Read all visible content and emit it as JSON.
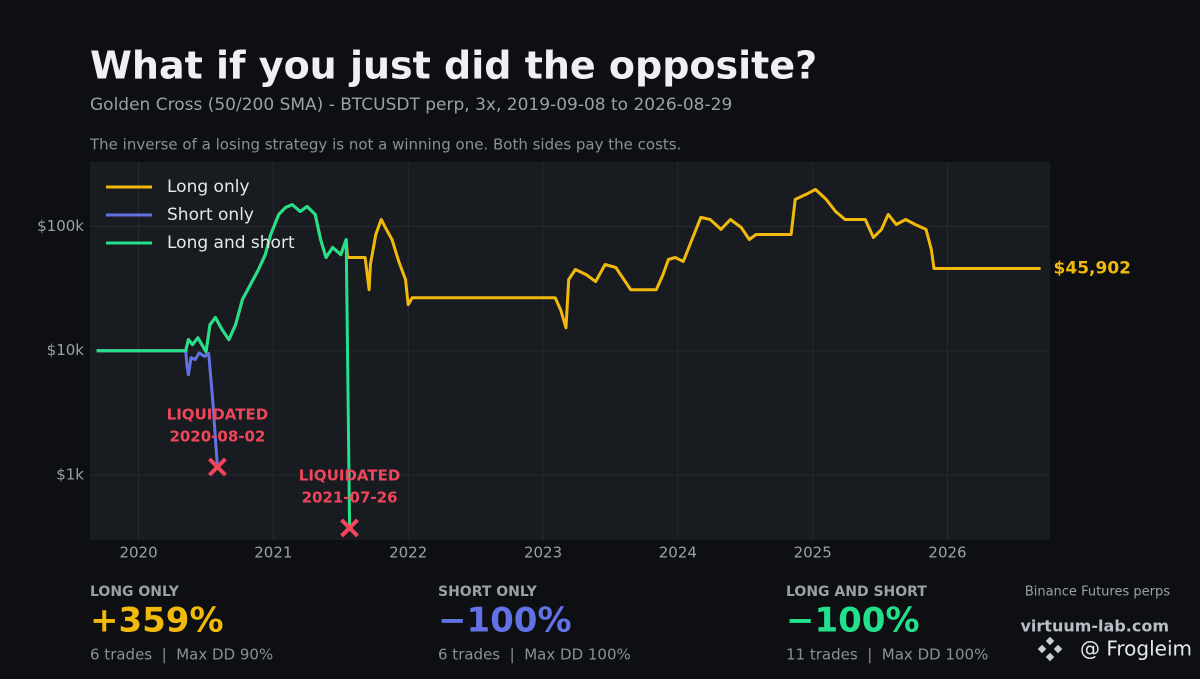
{
  "chart_data": {
    "type": "line",
    "title": "What if you just did the opposite?",
    "subtitle": "Golden Cross (50/200 SMA) - BTCUSDT perp, 3x, 2019-09-08 to 2026-08-29",
    "caption": "The inverse of a losing strategy is not a winning one. Both sides pay the costs.",
    "log_y": true,
    "grid": true,
    "legend": "upper left",
    "xlim": [
      2019.64,
      2026.76
    ],
    "xticks": [
      2020,
      2021,
      2022,
      2023,
      2024,
      2025,
      2026
    ],
    "ylim": [
      300,
      330000
    ],
    "yticks": [
      {
        "value": 1000,
        "label": "$1k"
      },
      {
        "value": 10000,
        "label": "$10k"
      },
      {
        "value": 100000,
        "label": "$100k"
      }
    ],
    "series": [
      {
        "name": "Long only",
        "color": "#f0b90b",
        "x": [
          2019.69,
          2020.35,
          2020.37,
          2020.4,
          2020.44,
          2020.5,
          2020.53,
          2020.57,
          2020.62,
          2020.67,
          2020.72,
          2020.77,
          2020.83,
          2020.89,
          2020.94,
          2020.98,
          2021.04,
          2021.09,
          2021.14,
          2021.2,
          2021.25,
          2021.31,
          2021.35,
          2021.39,
          2021.44,
          2021.5,
          2021.54,
          2021.55,
          2021.68,
          2021.71,
          2021.72,
          2021.76,
          2021.8,
          2021.83,
          2021.88,
          2021.93,
          2021.98,
          2022.0,
          2022.03,
          2023.09,
          2023.13,
          2023.17,
          2023.19,
          2023.24,
          2023.32,
          2023.39,
          2023.46,
          2023.54,
          2023.61,
          2023.65,
          2023.84,
          2023.89,
          2023.93,
          2023.98,
          2024.04,
          2024.09,
          2024.17,
          2024.24,
          2024.32,
          2024.39,
          2024.47,
          2024.53,
          2024.58,
          2024.84,
          2024.87,
          2024.95,
          2025.02,
          2025.1,
          2025.17,
          2025.24,
          2025.39,
          2025.45,
          2025.51,
          2025.56,
          2025.62,
          2025.69,
          2025.76,
          2025.84,
          2025.88,
          2025.9,
          2026.69
        ],
        "values": [
          10000,
          10000,
          12300,
          11200,
          12700,
          9800,
          16200,
          18500,
          14800,
          12300,
          16200,
          25800,
          34000,
          45000,
          59400,
          86100,
          125000,
          142000,
          150000,
          132000,
          145000,
          125000,
          78500,
          56200,
          67700,
          59400,
          78500,
          56200,
          56200,
          31000,
          49400,
          86100,
          113800,
          98200,
          78500,
          52200,
          37400,
          23500,
          26700,
          26700,
          21400,
          15300,
          37400,
          45000,
          41000,
          36000,
          49400,
          46700,
          36000,
          31000,
          31000,
          41000,
          54200,
          56200,
          52200,
          71600,
          118200,
          113800,
          94600,
          113800,
          98200,
          78500,
          86100,
          86100,
          165000,
          181000,
          198600,
          165000,
          132000,
          113800,
          113800,
          81500,
          94600,
          125000,
          103700,
          113800,
          103700,
          94600,
          65300,
          45902,
          45902
        ],
        "value_labels": [
          null,
          null,
          null,
          null,
          null,
          null,
          null,
          null,
          null,
          null,
          null,
          null,
          null,
          null,
          null,
          null,
          null,
          null,
          null,
          null,
          null,
          null,
          null,
          null,
          null,
          null,
          null,
          null,
          null,
          null,
          null,
          null,
          null,
          null,
          null,
          null,
          null,
          null,
          null,
          null,
          null,
          null,
          null,
          null,
          null,
          null,
          null,
          null,
          null,
          null,
          null,
          null,
          null,
          null,
          null,
          null,
          null,
          null,
          null,
          null,
          null,
          null,
          null,
          null,
          null,
          null,
          null,
          null,
          null,
          null,
          null,
          null,
          null,
          null,
          null,
          null,
          null,
          null,
          null,
          null,
          "$45,902"
        ]
      },
      {
        "name": "Short only",
        "color": "#6272e4",
        "x": [
          2019.69,
          2020.35,
          2020.36,
          2020.37,
          2020.39,
          2020.42,
          2020.45,
          2020.49,
          2020.52,
          2020.55,
          2020.585
        ],
        "values": [
          10000,
          10000,
          7500,
          6400,
          8800,
          8500,
          9600,
          9000,
          9500,
          4000,
          1160
        ]
      },
      {
        "name": "Long and short",
        "color": "#22e08c",
        "x": [
          2019.69,
          2020.35,
          2020.37,
          2020.4,
          2020.44,
          2020.5,
          2020.53,
          2020.57,
          2020.62,
          2020.67,
          2020.72,
          2020.77,
          2020.83,
          2020.89,
          2020.94,
          2020.98,
          2021.04,
          2021.09,
          2021.14,
          2021.2,
          2021.25,
          2021.31,
          2021.35,
          2021.39,
          2021.44,
          2021.5,
          2021.54,
          2021.565
        ],
        "values": [
          10000,
          10000,
          12300,
          11200,
          12700,
          9800,
          16200,
          18500,
          14800,
          12300,
          16200,
          25800,
          34000,
          45000,
          59400,
          86100,
          125000,
          142000,
          150000,
          132000,
          145000,
          125000,
          78500,
          56200,
          67700,
          59400,
          78500,
          375
        ]
      }
    ],
    "annotations": [
      {
        "text": "LIQUIDATED",
        "date": "2020-08-02",
        "x": 2020.585,
        "y": 1160,
        "color": "#f0455a"
      },
      {
        "text": "LIQUIDATED",
        "date": "2021-07-26",
        "x": 2021.565,
        "y": 375,
        "color": "#f0455a"
      }
    ]
  },
  "stats": [
    {
      "label": "LONG ONLY",
      "value": "+359%",
      "detail": "6 trades  |  Max DD 90%"
    },
    {
      "label": "SHORT ONLY",
      "value": "−100%",
      "detail": "6 trades  |  Max DD 100%"
    },
    {
      "label": "LONG AND SHORT",
      "value": "−100%",
      "detail": "11 trades  |  Max DD 100%"
    }
  ],
  "footer": {
    "source": "Binance Futures perps",
    "site": "virtuum-lab.com",
    "handle": "@ Frogleim"
  }
}
